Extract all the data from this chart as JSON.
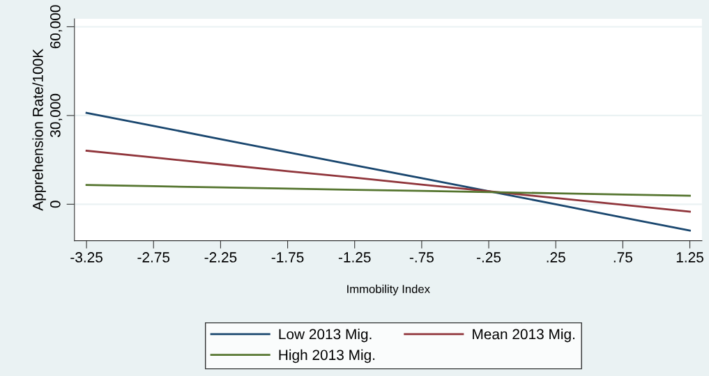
{
  "chart_data": {
    "type": "line",
    "xlabel": "Immobility Index",
    "ylabel": "Apprehension Rate/100K",
    "x": [
      -3.25,
      -2.75,
      -2.25,
      -1.75,
      -1.25,
      -0.75,
      -0.25,
      0.25,
      0.75,
      1.25
    ],
    "series": [
      {
        "name": "Low 2013 Mig.",
        "color": "#1a476f",
        "values": [
          30900,
          26500,
          22000,
          17600,
          13200,
          8800,
          4400,
          0,
          -4500,
          -8900
        ]
      },
      {
        "name": "Mean 2013 Mig.",
        "color": "#90353b",
        "values": [
          18100,
          15800,
          13500,
          11200,
          9000,
          6650,
          4400,
          2100,
          -200,
          -2500
        ]
      },
      {
        "name": "High 2013 Mig.",
        "color": "#55752f",
        "values": [
          6500,
          6100,
          5700,
          5300,
          4900,
          4500,
          4100,
          3700,
          3300,
          2900
        ]
      }
    ],
    "xlim": [
      -3.34,
      1.34
    ],
    "ylim": [
      -12300,
      62700
    ],
    "xticks": [
      {
        "value": -3.25,
        "label": "-3.25"
      },
      {
        "value": -2.75,
        "label": "-2.75"
      },
      {
        "value": -2.25,
        "label": "-2.25"
      },
      {
        "value": -1.75,
        "label": "-1.75"
      },
      {
        "value": -1.25,
        "label": "-1.25"
      },
      {
        "value": -0.75,
        "label": "-.75"
      },
      {
        "value": -0.25,
        "label": "-.25"
      },
      {
        "value": 0.25,
        "label": ".25"
      },
      {
        "value": 0.75,
        "label": ".75"
      },
      {
        "value": 1.25,
        "label": "1.25"
      }
    ],
    "yticks": [
      0,
      {
        "value": 30000,
        "label": "30,000"
      },
      {
        "value": 60000,
        "label": "60,000"
      }
    ],
    "grid": "y",
    "legend": "bottom",
    "marker": "none",
    "line_style": "solid"
  }
}
